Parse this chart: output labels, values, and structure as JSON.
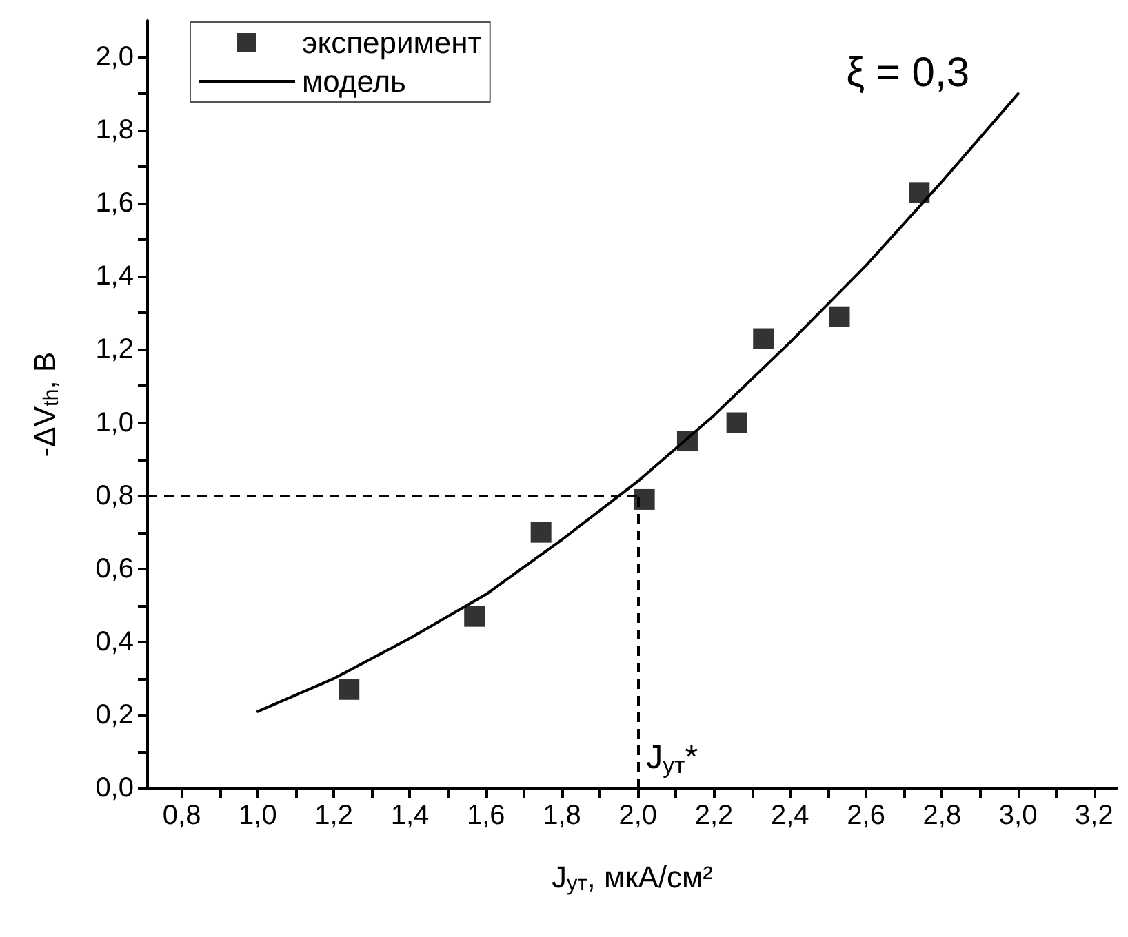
{
  "chart_data": {
    "type": "scatter",
    "xlabel": "J$_{ут}$, мкА/см²",
    "ylabel": "-ΔV$_{th}$, В",
    "annotations": [
      "ξ = 0,3"
    ],
    "series": [
      {
        "name": "эксперимент",
        "color": "#000000",
        "marker": "square",
        "x": [
          1.24,
          1.57,
          1.745,
          2.017,
          2.13,
          2.26,
          2.33,
          2.53,
          2.74
        ],
        "values": [
          0.27,
          0.47,
          0.7,
          0.79,
          0.95,
          1.0,
          1.23,
          1.29,
          1.63
        ]
      },
      {
        "name": "модель",
        "type": "line",
        "color": "#000000",
        "marker": "none",
        "line_style": "solid",
        "x": [
          1.0,
          1.2,
          1.4,
          1.6,
          1.8,
          2.0,
          2.2,
          2.4,
          2.6,
          2.8,
          3.0
        ],
        "values": [
          0.21,
          0.3,
          0.41,
          0.53,
          0.68,
          0.84,
          1.02,
          1.22,
          1.43,
          1.66,
          1.9
        ]
      }
    ],
    "ref_lines": [
      {
        "axis": "y",
        "value": 0.8,
        "label": null,
        "color": "#000000",
        "line_style": "dashed"
      },
      {
        "axis": "x",
        "value": 2.0,
        "label": "J$_{ут}$*",
        "color": "#000000",
        "line_style": "dashed"
      }
    ],
    "xlim": [
      0.71,
      3.26
    ],
    "xticks": [
      {
        "value": 0.8,
        "label": "0,8"
      },
      {
        "value": 0.9,
        "label": null
      },
      {
        "value": 1.0,
        "label": "1,0"
      },
      {
        "value": 1.1,
        "label": null
      },
      {
        "value": 1.2,
        "label": "1,2"
      },
      {
        "value": 1.3,
        "label": null
      },
      {
        "value": 1.4,
        "label": "1,4"
      },
      {
        "value": 1.5,
        "label": null
      },
      {
        "value": 1.6,
        "label": "1,6"
      },
      {
        "value": 1.7,
        "label": null
      },
      {
        "value": 1.8,
        "label": "1,8"
      },
      {
        "value": 1.9,
        "label": null
      },
      {
        "value": 2.0,
        "label": "2,0"
      },
      {
        "value": 2.1,
        "label": null
      },
      {
        "value": 2.2,
        "label": "2,2"
      },
      {
        "value": 2.3,
        "label": null
      },
      {
        "value": 2.4,
        "label": "2,4"
      },
      {
        "value": 2.5,
        "label": null
      },
      {
        "value": 2.6,
        "label": "2,6"
      },
      {
        "value": 2.7,
        "label": null
      },
      {
        "value": 2.8,
        "label": "2,8"
      },
      {
        "value": 2.9,
        "label": null
      },
      {
        "value": 3.0,
        "label": "3,0"
      },
      {
        "value": 3.1,
        "label": null
      },
      {
        "value": 3.2,
        "label": "3,2"
      }
    ],
    "ylim": [
      0,
      2.1
    ],
    "yticks": [
      {
        "value": 0,
        "label": "0,0"
      },
      {
        "value": 0.1,
        "label": null
      },
      {
        "value": 0.2,
        "label": "0,2"
      },
      {
        "value": 0.3,
        "label": null
      },
      {
        "value": 0.4,
        "label": "0,4"
      },
      {
        "value": 0.5,
        "label": null
      },
      {
        "value": 0.6,
        "label": "0,6"
      },
      {
        "value": 0.7,
        "label": null
      },
      {
        "value": 0.8,
        "label": "0,8"
      },
      {
        "value": 0.9,
        "label": null
      },
      {
        "value": 1.0,
        "label": "1,0"
      },
      {
        "value": 1.1,
        "label": null
      },
      {
        "value": 1.2,
        "label": "1,2"
      },
      {
        "value": 1.3,
        "label": null
      },
      {
        "value": 1.4,
        "label": "1,4"
      },
      {
        "value": 1.5,
        "label": null
      },
      {
        "value": 1.6,
        "label": "1,6"
      },
      {
        "value": 1.7,
        "label": null
      },
      {
        "value": 1.8,
        "label": "1,8"
      },
      {
        "value": 1.9,
        "label": null
      },
      {
        "value": 2.0,
        "label": "2,0"
      }
    ],
    "grid": false,
    "legend": "top left"
  }
}
